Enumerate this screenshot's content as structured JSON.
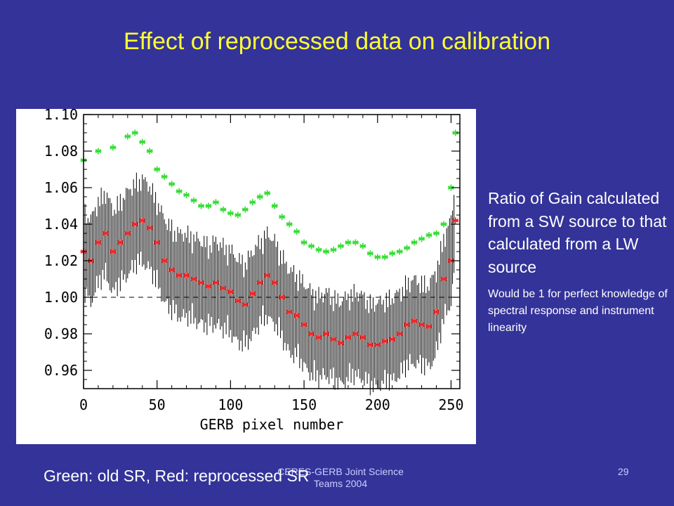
{
  "slide": {
    "title": "Effect of reprocessed data on calibration",
    "side_main": "Ratio of Gain calculated from a SW source to that calculated from a LW source",
    "side_sub": "Would be 1 for perfect knowledge of spectral response and instrument linearity",
    "footer_left": "CERES-GERB Joint Science Teams 2004",
    "page_number": "29",
    "caption": "Green: old SR, Red: reprocessed SR"
  },
  "colors": {
    "background": "#333399",
    "title": "#ffff33",
    "old_sr": "#33dd33",
    "reprocessed_sr": "#ee2222",
    "error_bars": "#000000"
  },
  "chart_data": {
    "type": "scatter",
    "title": "",
    "xlabel": "GERB pixel number",
    "ylabel": "",
    "xlim": [
      0,
      256
    ],
    "ylim": [
      0.95,
      1.1
    ],
    "xticks": [
      0,
      50,
      100,
      150,
      200,
      250
    ],
    "yticks": [
      0.96,
      0.98,
      1.0,
      1.02,
      1.04,
      1.06,
      1.08,
      1.1
    ],
    "ytick_labels": [
      "0.96",
      "0.98",
      "1.00",
      "1.02",
      "1.04",
      "1.06",
      "1.08",
      "1.10"
    ],
    "reference_line": 1.0,
    "marker": "asterisk",
    "series": [
      {
        "key": "old_sr",
        "color": "#33dd33",
        "x": [
          0,
          10,
          20,
          30,
          35,
          40,
          45,
          50,
          55,
          60,
          65,
          70,
          75,
          80,
          85,
          90,
          95,
          100,
          105,
          110,
          115,
          120,
          125,
          130,
          135,
          140,
          145,
          150,
          155,
          160,
          165,
          170,
          175,
          180,
          185,
          190,
          195,
          200,
          205,
          210,
          215,
          220,
          225,
          230,
          235,
          240,
          245,
          250,
          253
        ],
        "y": [
          1.075,
          1.08,
          1.082,
          1.088,
          1.09,
          1.085,
          1.08,
          1.07,
          1.066,
          1.062,
          1.058,
          1.056,
          1.053,
          1.05,
          1.05,
          1.052,
          1.048,
          1.046,
          1.045,
          1.048,
          1.052,
          1.055,
          1.057,
          1.05,
          1.044,
          1.04,
          1.036,
          1.03,
          1.028,
          1.026,
          1.025,
          1.026,
          1.028,
          1.03,
          1.03,
          1.028,
          1.024,
          1.022,
          1.022,
          1.024,
          1.025,
          1.027,
          1.03,
          1.032,
          1.034,
          1.035,
          1.04,
          1.06,
          1.09
        ]
      },
      {
        "key": "reprocessed_sr",
        "color": "#ee2222",
        "x": [
          0,
          5,
          10,
          15,
          20,
          25,
          30,
          35,
          40,
          45,
          50,
          55,
          60,
          65,
          70,
          75,
          80,
          85,
          90,
          95,
          100,
          105,
          110,
          115,
          120,
          125,
          130,
          135,
          140,
          145,
          150,
          155,
          160,
          165,
          170,
          175,
          180,
          185,
          190,
          195,
          200,
          205,
          210,
          215,
          220,
          225,
          230,
          235,
          240,
          245,
          250,
          253
        ],
        "y": [
          1.025,
          1.02,
          1.03,
          1.035,
          1.025,
          1.03,
          1.035,
          1.04,
          1.042,
          1.038,
          1.03,
          1.02,
          1.015,
          1.012,
          1.012,
          1.01,
          1.008,
          1.006,
          1.008,
          1.005,
          1.003,
          0.998,
          0.996,
          1.002,
          1.008,
          1.012,
          1.008,
          1.0,
          0.992,
          0.99,
          0.985,
          0.98,
          0.978,
          0.98,
          0.977,
          0.975,
          0.978,
          0.98,
          0.978,
          0.974,
          0.974,
          0.976,
          0.977,
          0.98,
          0.985,
          0.987,
          0.985,
          0.984,
          0.992,
          1.01,
          1.02,
          1.042
        ]
      }
    ]
  }
}
